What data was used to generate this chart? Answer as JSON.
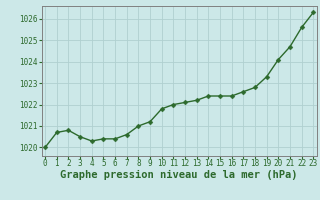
{
  "x": [
    0,
    1,
    2,
    3,
    4,
    5,
    6,
    7,
    8,
    9,
    10,
    11,
    12,
    13,
    14,
    15,
    16,
    17,
    18,
    19,
    20,
    21,
    22,
    23
  ],
  "y": [
    1020.0,
    1020.7,
    1020.8,
    1020.5,
    1020.3,
    1020.4,
    1020.4,
    1020.6,
    1021.0,
    1021.2,
    1021.8,
    1022.0,
    1022.1,
    1022.2,
    1022.4,
    1022.4,
    1022.4,
    1022.6,
    1022.8,
    1023.3,
    1024.1,
    1024.7,
    1025.6,
    1026.3
  ],
  "line_color": "#2d6a2d",
  "marker_color": "#2d6a2d",
  "bg_color": "#cce8e8",
  "grid_color": "#b0d0d0",
  "axis_label_color": "#2d6a2d",
  "tick_label_color": "#2d6a2d",
  "xlabel": "Graphe pression niveau de la mer (hPa)",
  "ylim": [
    1019.6,
    1026.6
  ],
  "yticks": [
    1020,
    1021,
    1022,
    1023,
    1024,
    1025,
    1026
  ],
  "xtick_labels": [
    "0",
    "1",
    "2",
    "3",
    "4",
    "5",
    "6",
    "7",
    "8",
    "9",
    "10",
    "11",
    "12",
    "13",
    "14",
    "15",
    "16",
    "17",
    "18",
    "19",
    "20",
    "21",
    "22",
    "23"
  ],
  "xticks": [
    0,
    1,
    2,
    3,
    4,
    5,
    6,
    7,
    8,
    9,
    10,
    11,
    12,
    13,
    14,
    15,
    16,
    17,
    18,
    19,
    20,
    21,
    22,
    23
  ],
  "xlim": [
    -0.3,
    23.3
  ],
  "linewidth": 1.0,
  "markersize": 2.5,
  "xlabel_fontsize": 7.5,
  "tick_fontsize": 5.5
}
